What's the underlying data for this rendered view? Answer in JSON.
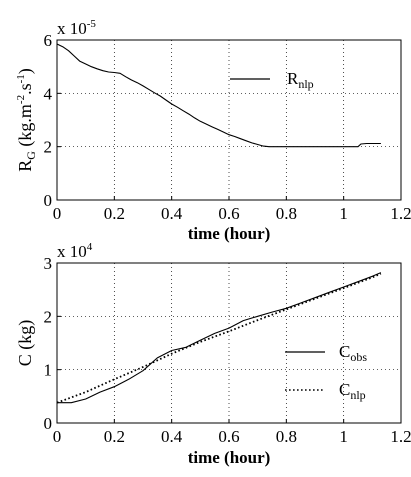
{
  "chart_data": [
    {
      "type": "line",
      "ylabel_main": "R",
      "ylabel_sub": "G",
      "ylabel_unit": "(kg.m",
      "ylabel_exp1": "-2",
      "ylabel_mid": ".s",
      "ylabel_exp2": "-1",
      "ylabel_close": ")",
      "xlabel": "time (hour)",
      "multiplier_base": "x 10",
      "multiplier_exp": "-5",
      "xlim": [
        0,
        1.2
      ],
      "ylim": [
        0,
        6
      ],
      "xticks": [
        "0",
        "0.2",
        "0.4",
        "0.6",
        "0.8",
        "1",
        "1.2"
      ],
      "yticks": [
        "0",
        "2",
        "4",
        "6"
      ],
      "grid": true,
      "legend_position": "top-right",
      "series": [
        {
          "name": "R",
          "name_sub": "nlp",
          "style": "solid",
          "x": [
            0,
            0.02,
            0.04,
            0.06,
            0.08,
            0.1,
            0.12,
            0.14,
            0.16,
            0.18,
            0.2,
            0.22,
            0.24,
            0.26,
            0.28,
            0.3,
            0.32,
            0.34,
            0.36,
            0.38,
            0.4,
            0.42,
            0.44,
            0.46,
            0.48,
            0.5,
            0.52,
            0.54,
            0.56,
            0.58,
            0.6,
            0.62,
            0.64,
            0.66,
            0.68,
            0.7,
            0.72,
            0.74,
            0.76,
            0.8,
            0.9,
            1.0,
            1.05,
            1.06,
            1.08,
            1.13
          ],
          "values": [
            5.85,
            5.75,
            5.6,
            5.4,
            5.2,
            5.1,
            5.0,
            4.92,
            4.85,
            4.8,
            4.78,
            4.75,
            4.62,
            4.5,
            4.4,
            4.28,
            4.15,
            4.02,
            3.9,
            3.75,
            3.6,
            3.48,
            3.35,
            3.22,
            3.08,
            2.95,
            2.85,
            2.75,
            2.65,
            2.55,
            2.45,
            2.38,
            2.3,
            2.22,
            2.14,
            2.08,
            2.02,
            2.0,
            2.0,
            2.0,
            2.0,
            2.0,
            2.0,
            2.1,
            2.12,
            2.12
          ]
        }
      ]
    },
    {
      "type": "line",
      "ylabel": "C  (kg)",
      "xlabel": "time (hour)",
      "multiplier_base": "x 10",
      "multiplier_exp": "4",
      "xlim": [
        0,
        1.2
      ],
      "ylim": [
        0,
        3
      ],
      "xticks": [
        "0",
        "0.2",
        "0.4",
        "0.6",
        "0.8",
        "1",
        "1.2"
      ],
      "yticks": [
        "0",
        "1",
        "2",
        "3"
      ],
      "grid": true,
      "legend_position": "right",
      "series": [
        {
          "name": "C",
          "name_sub": "obs",
          "style": "solid",
          "x": [
            0,
            0.05,
            0.1,
            0.15,
            0.2,
            0.25,
            0.3,
            0.35,
            0.4,
            0.45,
            0.5,
            0.55,
            0.6,
            0.65,
            0.7,
            0.75,
            0.8,
            0.85,
            0.9,
            0.95,
            1.0,
            1.05,
            1.1,
            1.13
          ],
          "values": [
            0.38,
            0.38,
            0.45,
            0.58,
            0.68,
            0.82,
            0.98,
            1.22,
            1.36,
            1.42,
            1.55,
            1.68,
            1.78,
            1.92,
            2.0,
            2.08,
            2.15,
            2.25,
            2.35,
            2.45,
            2.55,
            2.65,
            2.75,
            2.82
          ]
        },
        {
          "name": "C",
          "name_sub": "nlp",
          "style": "dotted",
          "x": [
            0,
            0.1,
            0.2,
            0.3,
            0.4,
            0.5,
            0.6,
            0.7,
            0.8,
            0.9,
            1.0,
            1.1,
            1.13
          ],
          "values": [
            0.38,
            0.58,
            0.82,
            1.05,
            1.3,
            1.52,
            1.72,
            1.93,
            2.13,
            2.33,
            2.53,
            2.73,
            2.8
          ]
        }
      ]
    }
  ]
}
